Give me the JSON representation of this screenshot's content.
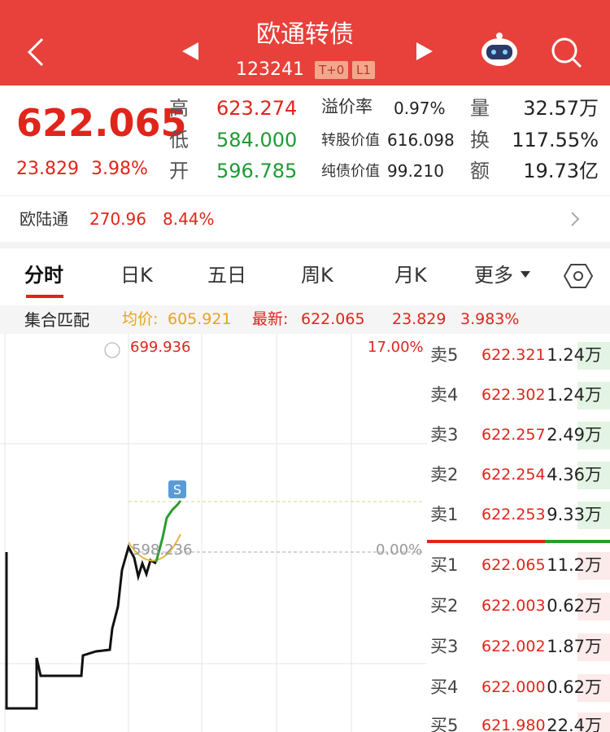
{
  "header": {
    "title": "欧通转债",
    "code": "123241",
    "tags": [
      "T+0",
      "L1"
    ]
  },
  "quote": {
    "price": "622.065",
    "change": "23.829",
    "change_pct": "3.98%",
    "col1": [
      {
        "label": "高",
        "value": "623.274"
      },
      {
        "label": "低",
        "value": "584.000"
      },
      {
        "label": "开",
        "value": "596.785"
      }
    ],
    "col2": [
      {
        "label": "溢价率",
        "value": "0.97%"
      },
      {
        "label": "转股价值",
        "value": "616.098"
      },
      {
        "label": "纯债价值",
        "value": "99.210"
      }
    ],
    "col3": [
      {
        "label": "量",
        "value": "32.57万"
      },
      {
        "label": "换",
        "value": "117.55%"
      },
      {
        "label": "额",
        "value": "19.73亿"
      }
    ]
  },
  "stock": {
    "name": "欧陆通",
    "price": "270.96",
    "change_pct": "8.44%"
  },
  "tabs": [
    "分时",
    "日K",
    "五日",
    "周K",
    "月K",
    "更多"
  ],
  "info": {
    "mode": "集合匹配",
    "avg_label": "均价:",
    "avg": "605.921",
    "latest_label": "最新:",
    "latest": "622.065",
    "change": "23.829",
    "change_pct": "3.983%"
  },
  "chart": {
    "top_price": "699.936",
    "top_pct": "17.00%",
    "base_price": "598.236",
    "base_pct": "0.00%",
    "marker": "S"
  },
  "order_book": {
    "asks": [
      {
        "label": "卖5",
        "price": "622.321",
        "volume": "1.24万"
      },
      {
        "label": "卖4",
        "price": "622.302",
        "volume": "1.24万"
      },
      {
        "label": "卖3",
        "price": "622.257",
        "volume": "2.49万"
      },
      {
        "label": "卖2",
        "price": "622.254",
        "volume": "4.36万"
      },
      {
        "label": "卖1",
        "price": "622.253",
        "volume": "9.33万"
      }
    ],
    "bids": [
      {
        "label": "买1",
        "price": "622.065",
        "volume": "11.2万"
      },
      {
        "label": "买2",
        "price": "622.003",
        "volume": "0.62万"
      },
      {
        "label": "买3",
        "price": "622.002",
        "volume": "1.87万"
      },
      {
        "label": "买4",
        "price": "622.000",
        "volume": "0.62万"
      },
      {
        "label": "买5",
        "price": "621.980",
        "volume": "22.4万"
      }
    ]
  }
}
